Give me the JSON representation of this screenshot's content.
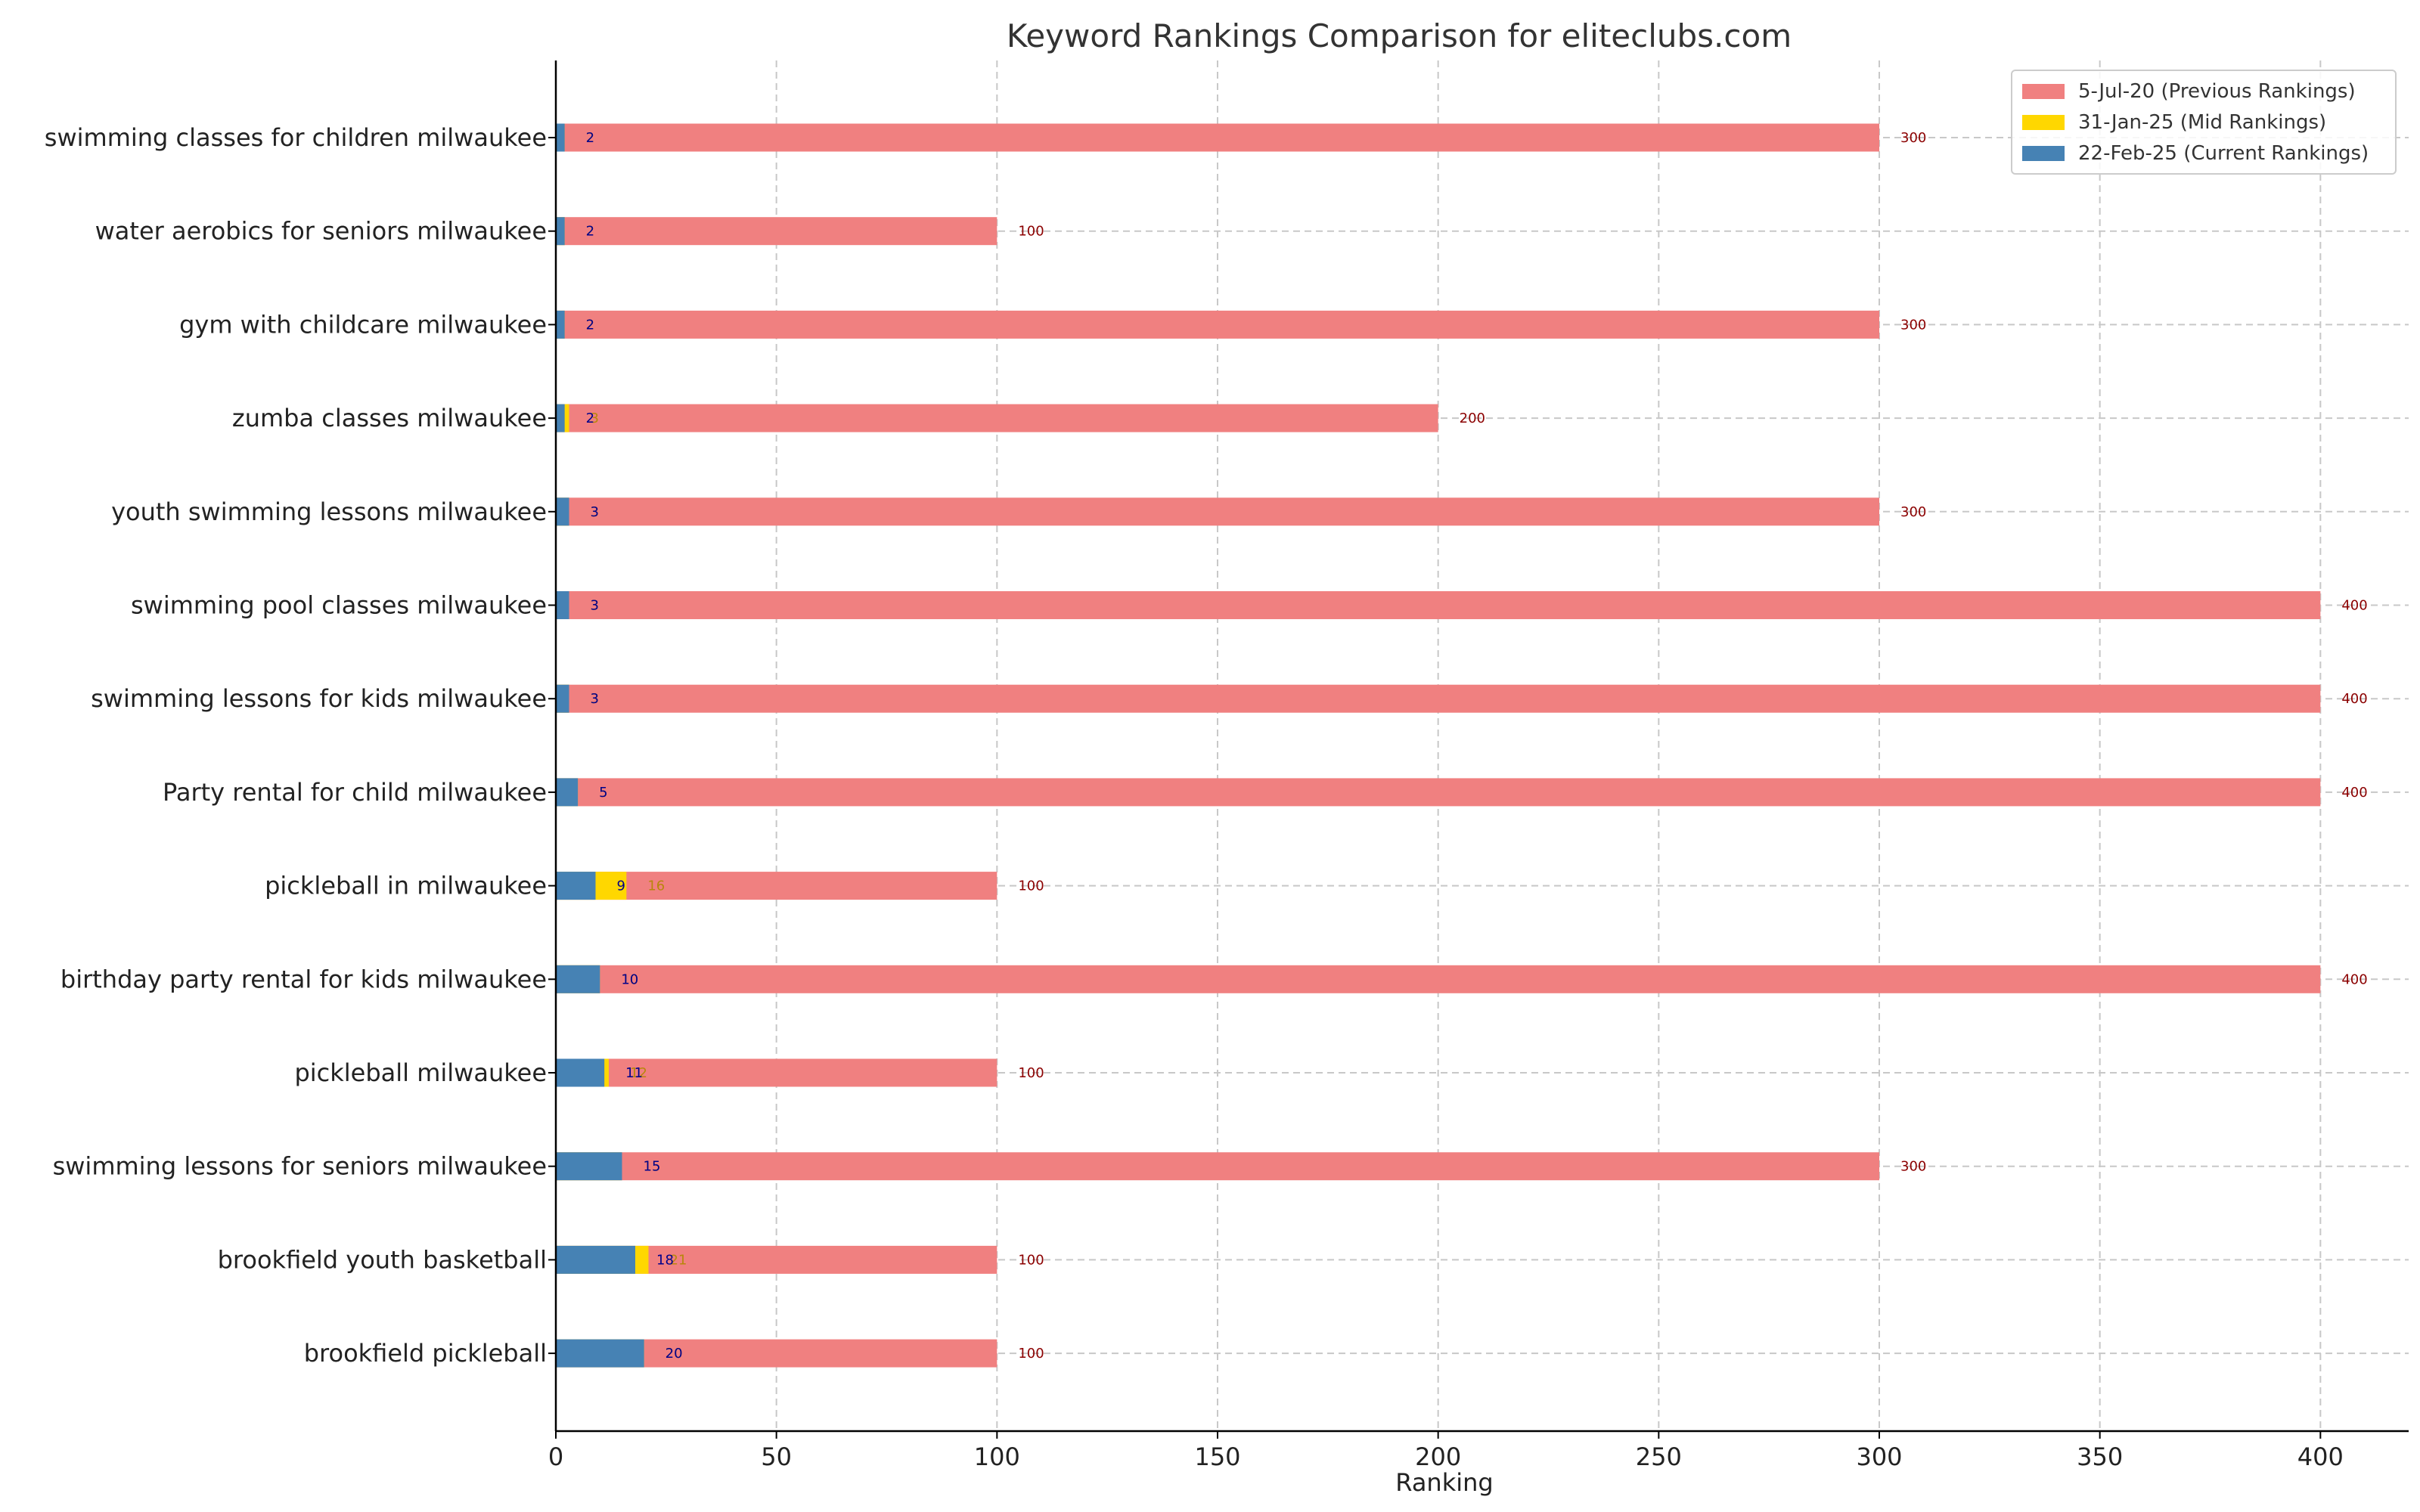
{
  "chart_data": {
    "type": "bar",
    "orientation": "horizontal",
    "stacking": "overlay",
    "title": "Keyword Rankings Comparison for eliteclubs.com",
    "xlabel": "Ranking",
    "ylabel": "",
    "xlim": [
      0,
      420
    ],
    "xticks": [
      0,
      50,
      100,
      150,
      200,
      250,
      300,
      350,
      400
    ],
    "grid": true,
    "legend_position": "top-right",
    "categories": [
      "swimming classes for children milwaukee",
      "water aerobics for seniors milwaukee",
      "gym with childcare milwaukee",
      "zumba classes milwaukee",
      "youth swimming lessons milwaukee",
      "swimming pool classes milwaukee",
      "swimming lessons for kids milwaukee",
      "Party rental for child milwaukee",
      "pickleball in milwaukee",
      "birthday party rental for kids milwaukee",
      "pickleball milwaukee",
      "swimming lessons for seniors milwaukee",
      "brookfield youth basketball",
      "brookfield pickleball"
    ],
    "series": [
      {
        "name": "5-Jul-20 (Previous Rankings)",
        "color": "#F08080",
        "label_color": "#8B0000",
        "values": [
          300,
          100,
          300,
          200,
          300,
          400,
          400,
          400,
          100,
          400,
          100,
          300,
          100,
          100
        ]
      },
      {
        "name": "31-Jan-25 (Mid Rankings)",
        "color": "#FFD700",
        "label_color": "#B8860B",
        "values": [
          2,
          2,
          2,
          3,
          3,
          3,
          3,
          5,
          16,
          10,
          12,
          15,
          21,
          20
        ]
      },
      {
        "name": "22-Feb-25 (Current Rankings)",
        "color": "#4682B4",
        "label_color": "#00008B",
        "values": [
          2,
          2,
          2,
          2,
          3,
          3,
          3,
          5,
          9,
          10,
          11,
          15,
          18,
          20
        ]
      }
    ]
  }
}
